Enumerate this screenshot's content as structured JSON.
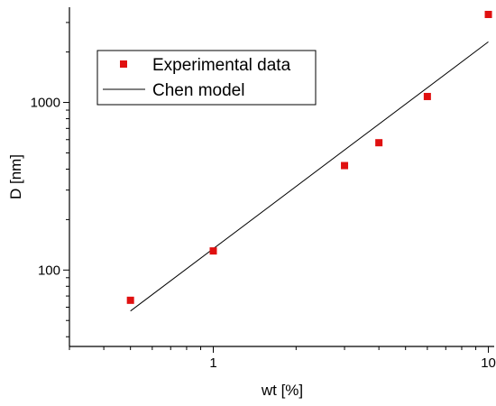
{
  "chart_data": {
    "type": "scatter",
    "xlabel": "wt [%]",
    "ylabel": "D [nm]",
    "xscale": "log",
    "yscale": "log",
    "xlim": [
      0.3,
      10.5
    ],
    "ylim": [
      35,
      3700
    ],
    "xticks": [
      {
        "value": 1,
        "label": "1"
      },
      {
        "value": 10,
        "label": "10"
      }
    ],
    "yticks": [
      {
        "value": 100,
        "label": "100"
      },
      {
        "value": 1000,
        "label": "1000"
      }
    ],
    "grid": false,
    "legend_position": "top-left",
    "series": [
      {
        "name": "Experimental data",
        "kind": "scatter",
        "marker": "square",
        "color": "#e01010",
        "x": [
          0.5,
          1,
          3,
          4,
          6,
          10
        ],
        "y": [
          66,
          130,
          420,
          575,
          1085,
          3350
        ]
      },
      {
        "name": "Chen model",
        "kind": "line",
        "color": "#000000",
        "x": [
          0.5,
          10
        ],
        "y": [
          57,
          2300
        ]
      }
    ]
  }
}
